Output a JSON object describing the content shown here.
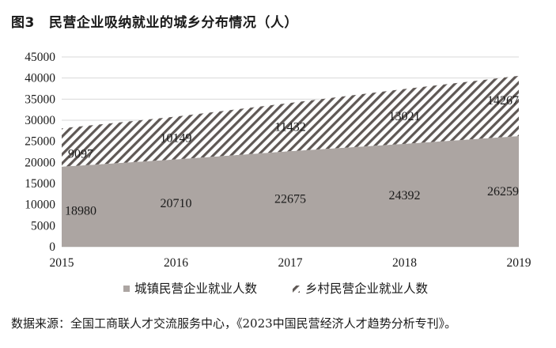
{
  "figure": {
    "number": "图3",
    "title": "民营企业吸纳就业的城乡分布情况（人）",
    "source": "数据来源：全国工商联人才交流服务中心，《2023中国民营经济人才趋势分析专刊》。"
  },
  "colors": {
    "urban_fill": "#aca5a2",
    "rural_hatch": "#5f5855",
    "gridline": "#d9d9d9"
  },
  "chart_data": {
    "type": "area",
    "stacked": true,
    "title": "民营企业吸纳就业的城乡分布情况（人）",
    "xlabel": "",
    "ylabel": "",
    "categories": [
      "2015",
      "2016",
      "2017",
      "2018",
      "2019"
    ],
    "series": [
      {
        "name": "城镇民营企业就业人数",
        "values": [
          18980,
          20710,
          22675,
          24392,
          26259
        ]
      },
      {
        "name": "乡村民营企业就业人数",
        "values": [
          9097,
          10149,
          11432,
          13021,
          14267
        ]
      }
    ],
    "ylim": [
      0,
      45000
    ],
    "yticks": [
      "0",
      "5000",
      "10000",
      "15000",
      "20000",
      "25000",
      "30000",
      "35000",
      "40000",
      "45000"
    ],
    "grid": true,
    "legend": "bottom"
  }
}
